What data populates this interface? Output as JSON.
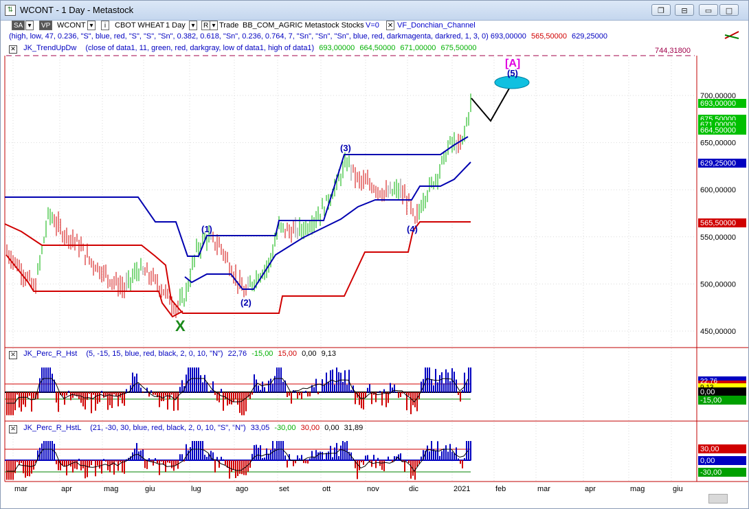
{
  "window": {
    "title": "WCONT - 1 Day - Metastock",
    "buttons": {
      "restore_down": "❐",
      "restore": "⊟",
      "minimize": "▭",
      "maximize": "□",
      "close": "✕"
    }
  },
  "toolbar": {
    "sa": "SA",
    "vp": "VP",
    "symbol": "WCONT",
    "name": "CBOT WHEAT",
    "period": "1 Day",
    "r_label": "R",
    "trade": "Trade",
    "source": "BB_COM_AGRIC Metastock Stocks",
    "v": "V=0",
    "indicator": "VF_Donchian_Channel"
  },
  "params_line": {
    "text": "(high, low, 47, 0.236, \"S\", blue, red, \"S\", \"S\", \"Sn\", 0.382, 0.618, \"Sn\", 0.236, 0.764, 7, \"Sn\", \"Sn\", \"Sn\", blue, red, darkmagenta, darkred, 1, 3, 0)",
    "v1": "693,00000",
    "v2": "565,50000",
    "v3": "629,25000"
  },
  "trend_line": {
    "name": "JK_TrendUpDw",
    "params": "(close of data1, 11, green, red, darkgray, low of data1, high of data1)",
    "v1": "693,00000",
    "v2": "664,50000",
    "v3": "671,00000",
    "v4": "675,50000",
    "level_label": "744,31800"
  },
  "price_axis": {
    "ticks": [
      "700,00000",
      "650,00000",
      "600,00000",
      "550,00000",
      "500,00000",
      "450,00000"
    ],
    "badge_693": "693,00000",
    "badge_675": "675,50000",
    "badge_671": "671,00000",
    "badge_664": "664,50000",
    "badge_629": "629,25000",
    "badge_565": "565,50000"
  },
  "waves": {
    "x": "X",
    "w1": "(1)",
    "w2": "(2)",
    "w3": "(3)",
    "w4": "(4)",
    "w5": "(5)",
    "wa": "[A]"
  },
  "panel1": {
    "name": "JK_Perc_R_Hst",
    "params": "(5, -15, 15, blue, red, black, 2, 0, 10, \"N\")",
    "v1": "22,76",
    "v2": "-15,00",
    "v3": "15,00",
    "v4": "0,00",
    "v5": "9,13",
    "badge_top": "22,76",
    "badge_mid": "9,13",
    "badge_zero": "0,00",
    "badge_low": "-15,00"
  },
  "panel2": {
    "name": "JK_Perc_R_HstL",
    "params": "(21, -30, 30, blue, red, black, 2, 0, 10, \"S\", \"N\")",
    "v1": "33,05",
    "v2": "-30,00",
    "v3": "30,00",
    "v4": "0,00",
    "v5": "31,89",
    "badge_top": "30,00",
    "badge_zero": "0,00",
    "badge_low": "-30,00"
  },
  "time_axis": [
    "mar",
    "apr",
    "mag",
    "giu",
    "lug",
    "ago",
    "set",
    "ott",
    "nov",
    "dic",
    "2021",
    "feb",
    "mar",
    "apr",
    "mag",
    "giu"
  ],
  "colors": {
    "up": "#00b000",
    "down": "#d00000",
    "neutral": "#888888",
    "blue_line": "#0000b0",
    "red_line": "#d00000"
  }
}
